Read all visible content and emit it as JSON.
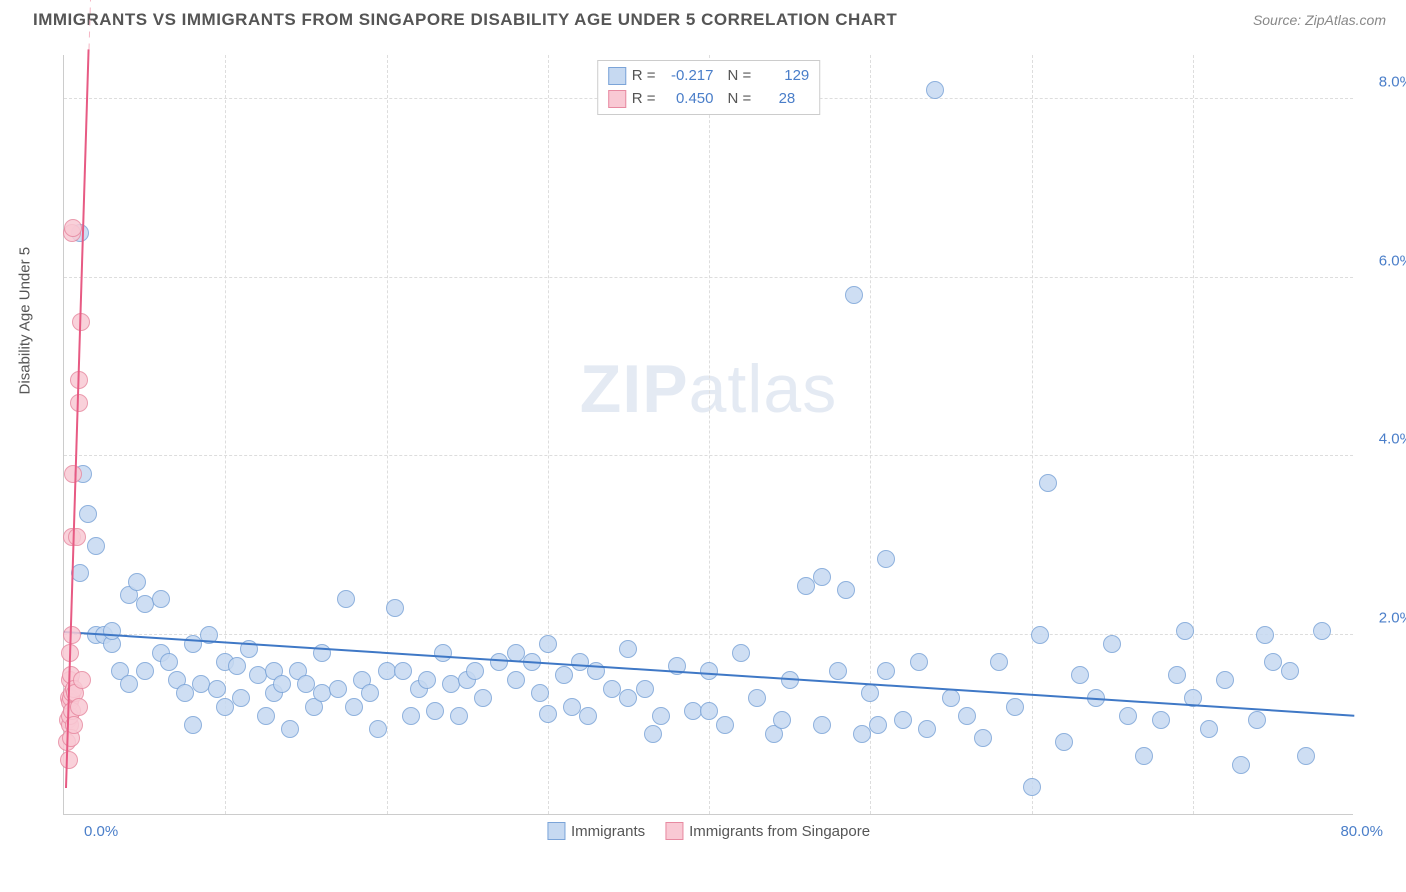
{
  "title": "IMMIGRANTS VS IMMIGRANTS FROM SINGAPORE DISABILITY AGE UNDER 5 CORRELATION CHART",
  "source": "Source: ZipAtlas.com",
  "watermark_a": "ZIP",
  "watermark_b": "atlas",
  "chart": {
    "type": "scatter",
    "ylabel": "Disability Age Under 5",
    "xlim": [
      0,
      80
    ],
    "ylim": [
      0,
      8.5
    ],
    "x_tick_origin": "0.0%",
    "x_tick_max": "80.0%",
    "y_ticks": [
      {
        "v": 2.0,
        "label": "2.0%"
      },
      {
        "v": 4.0,
        "label": "4.0%"
      },
      {
        "v": 6.0,
        "label": "6.0%"
      },
      {
        "v": 8.0,
        "label": "8.0%"
      }
    ],
    "x_grid": [
      10,
      20,
      30,
      40,
      50,
      60,
      70
    ],
    "background_color": "#ffffff",
    "grid_color": "#dddddd",
    "axis_color": "#cccccc",
    "tick_label_color": "#4a7ec9",
    "axis_label_color": "#555555",
    "series": [
      {
        "id": "immigrants",
        "label": "Immigrants",
        "R": "-0.217",
        "N": "129",
        "marker_size": 18,
        "fill": "#c6d9f1",
        "stroke": "#7ba4d8",
        "trend": {
          "m": -0.0117,
          "b": 2.03,
          "x0": 0,
          "x1": 80,
          "line_color": "#3f78c6",
          "line_width": 2,
          "dash": "solid"
        },
        "points": [
          [
            1.0,
            6.5
          ],
          [
            1.2,
            3.8
          ],
          [
            1.5,
            3.35
          ],
          [
            1.0,
            2.7
          ],
          [
            2.0,
            2.0
          ],
          [
            2.0,
            3.0
          ],
          [
            2.5,
            2.0
          ],
          [
            3.0,
            1.9
          ],
          [
            3.0,
            2.05
          ],
          [
            3.5,
            1.6
          ],
          [
            4.0,
            1.45
          ],
          [
            4.0,
            2.45
          ],
          [
            4.5,
            2.6
          ],
          [
            5.0,
            1.6
          ],
          [
            5.0,
            2.35
          ],
          [
            6.0,
            2.4
          ],
          [
            6.0,
            1.8
          ],
          [
            6.5,
            1.7
          ],
          [
            7.0,
            1.5
          ],
          [
            7.5,
            1.35
          ],
          [
            8.0,
            1.9
          ],
          [
            8.0,
            1.0
          ],
          [
            8.5,
            1.45
          ],
          [
            9.0,
            2.0
          ],
          [
            9.5,
            1.4
          ],
          [
            10.0,
            1.7
          ],
          [
            10.0,
            1.2
          ],
          [
            10.7,
            1.65
          ],
          [
            11.0,
            1.3
          ],
          [
            11.5,
            1.85
          ],
          [
            12.0,
            1.55
          ],
          [
            12.5,
            1.1
          ],
          [
            13.0,
            1.6
          ],
          [
            13.0,
            1.35
          ],
          [
            13.5,
            1.45
          ],
          [
            14.0,
            0.95
          ],
          [
            14.5,
            1.6
          ],
          [
            15.0,
            1.45
          ],
          [
            15.5,
            1.2
          ],
          [
            16.0,
            1.8
          ],
          [
            16.0,
            1.35
          ],
          [
            17.0,
            1.4
          ],
          [
            17.5,
            2.4
          ],
          [
            18.0,
            1.2
          ],
          [
            18.5,
            1.5
          ],
          [
            19.0,
            1.35
          ],
          [
            19.5,
            0.95
          ],
          [
            20.0,
            1.6
          ],
          [
            20.5,
            2.3
          ],
          [
            21.0,
            1.6
          ],
          [
            21.5,
            1.1
          ],
          [
            22.0,
            1.4
          ],
          [
            22.5,
            1.5
          ],
          [
            23.0,
            1.15
          ],
          [
            23.5,
            1.8
          ],
          [
            24.0,
            1.45
          ],
          [
            24.5,
            1.1
          ],
          [
            25.0,
            1.5
          ],
          [
            25.5,
            1.6
          ],
          [
            26.0,
            1.3
          ],
          [
            27.0,
            1.7
          ],
          [
            28.0,
            1.5
          ],
          [
            28.0,
            1.8
          ],
          [
            29.0,
            1.7
          ],
          [
            29.5,
            1.35
          ],
          [
            30.0,
            1.12
          ],
          [
            30.0,
            1.9
          ],
          [
            31.0,
            1.55
          ],
          [
            31.5,
            1.2
          ],
          [
            32.0,
            1.7
          ],
          [
            32.5,
            1.1
          ],
          [
            33.0,
            1.6
          ],
          [
            34.0,
            1.4
          ],
          [
            35.0,
            1.3
          ],
          [
            35.0,
            1.85
          ],
          [
            36.0,
            1.4
          ],
          [
            36.5,
            0.9
          ],
          [
            37.0,
            1.1
          ],
          [
            38.0,
            1.65
          ],
          [
            39.0,
            1.15
          ],
          [
            40.0,
            1.6
          ],
          [
            40.0,
            1.15
          ],
          [
            41.0,
            1.0
          ],
          [
            42.0,
            1.8
          ],
          [
            43.0,
            1.3
          ],
          [
            44.0,
            0.9
          ],
          [
            44.5,
            1.05
          ],
          [
            45.0,
            1.5
          ],
          [
            46.0,
            2.55
          ],
          [
            47.0,
            1.0
          ],
          [
            47.0,
            2.65
          ],
          [
            48.0,
            1.6
          ],
          [
            48.5,
            2.5
          ],
          [
            49.0,
            5.8
          ],
          [
            49.5,
            0.9
          ],
          [
            50.0,
            1.35
          ],
          [
            50.5,
            1.0
          ],
          [
            51.0,
            2.85
          ],
          [
            51.0,
            1.6
          ],
          [
            52.0,
            1.05
          ],
          [
            53.0,
            1.7
          ],
          [
            53.5,
            0.95
          ],
          [
            54.0,
            8.1
          ],
          [
            55.0,
            1.3
          ],
          [
            56.0,
            1.1
          ],
          [
            57.0,
            0.85
          ],
          [
            58.0,
            1.7
          ],
          [
            59.0,
            1.2
          ],
          [
            60.0,
            0.3
          ],
          [
            60.5,
            2.0
          ],
          [
            61.0,
            3.7
          ],
          [
            62.0,
            0.8
          ],
          [
            63.0,
            1.55
          ],
          [
            64.0,
            1.3
          ],
          [
            65.0,
            1.9
          ],
          [
            66.0,
            1.1
          ],
          [
            67.0,
            0.65
          ],
          [
            68.0,
            1.05
          ],
          [
            69.0,
            1.55
          ],
          [
            69.5,
            2.05
          ],
          [
            70.0,
            1.3
          ],
          [
            71.0,
            0.95
          ],
          [
            72.0,
            1.5
          ],
          [
            73.0,
            0.55
          ],
          [
            74.0,
            1.05
          ],
          [
            74.5,
            2.0
          ],
          [
            75.0,
            1.7
          ],
          [
            76.0,
            1.6
          ],
          [
            77.0,
            0.65
          ],
          [
            78.0,
            2.05
          ]
        ]
      },
      {
        "id": "singapore",
        "label": "Immigrants from Singapore",
        "R": "0.450",
        "N": "28",
        "marker_size": 18,
        "fill": "#f9c9d4",
        "stroke": "#e78aa1",
        "trend": {
          "m": 5.9,
          "b": -0.6,
          "x0": 0.15,
          "x1": 1.55,
          "line_color": "#e75a83",
          "line_width": 2,
          "dash": "solid"
        },
        "trend_ext": {
          "m": 5.9,
          "b": -0.6,
          "x0": 1.55,
          "x1": 3.6,
          "line_color": "#f5b5c4",
          "line_width": 1,
          "dash": "dashed"
        },
        "points": [
          [
            0.2,
            0.8
          ],
          [
            0.25,
            1.05
          ],
          [
            0.3,
            1.3
          ],
          [
            0.3,
            0.6
          ],
          [
            0.35,
            1.25
          ],
          [
            0.35,
            1.0
          ],
          [
            0.4,
            1.5
          ],
          [
            0.4,
            1.1
          ],
          [
            0.4,
            1.8
          ],
          [
            0.45,
            1.3
          ],
          [
            0.45,
            1.55
          ],
          [
            0.45,
            0.85
          ],
          [
            0.5,
            1.35
          ],
          [
            0.5,
            2.0
          ],
          [
            0.5,
            3.1
          ],
          [
            0.5,
            1.15
          ],
          [
            0.6,
            1.4
          ],
          [
            0.55,
            3.8
          ],
          [
            0.7,
            1.35
          ],
          [
            0.78,
            3.1
          ],
          [
            0.9,
            4.6
          ],
          [
            0.95,
            4.85
          ],
          [
            1.05,
            5.5
          ],
          [
            1.1,
            1.5
          ],
          [
            0.6,
            1.0
          ],
          [
            0.5,
            6.5
          ],
          [
            0.55,
            6.55
          ],
          [
            0.95,
            1.2
          ]
        ]
      }
    ]
  }
}
